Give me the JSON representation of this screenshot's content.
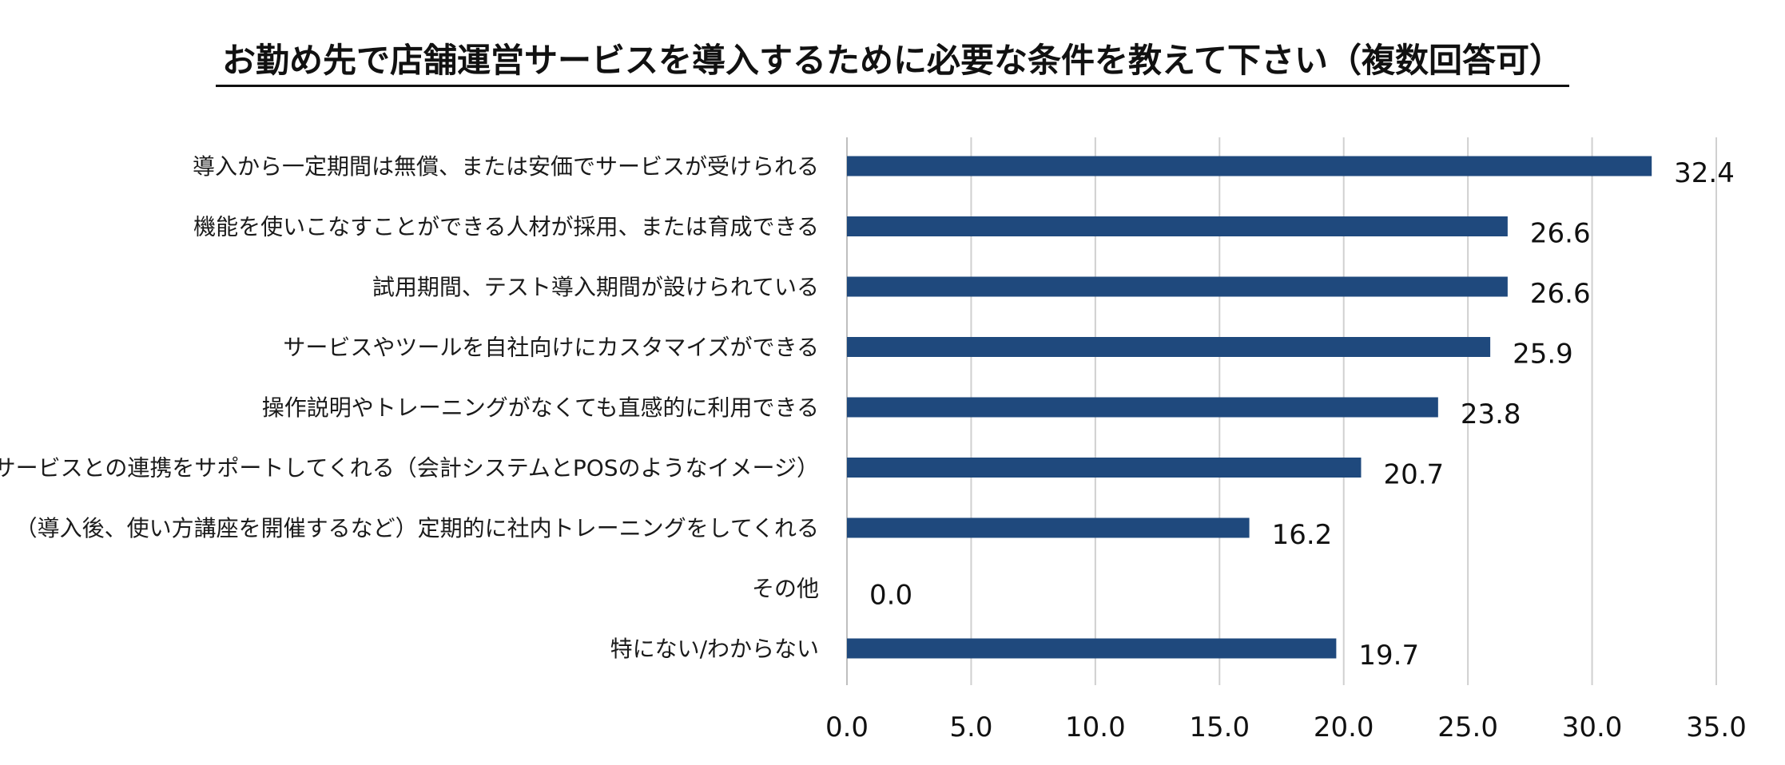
{
  "chart_data": {
    "type": "bar",
    "orientation": "horizontal",
    "title": "お勤め先で店舗運営サービスを導入するために必要な条件を教えて下さい（複数回答可）",
    "categories": [
      "導入から一定期間は無償、または安価でサービスが受けられる",
      "機能を使いこなすことができる人材が採用、または育成できる",
      "試用期間、テスト導入期間が設けられている",
      "サービスやツールを自社向けにカスタマイズができる",
      "操作説明やトレーニングがなくても直感的に利用できる",
      "他サービスとの連携をサポートしてくれる（会計システムとPOSのようなイメージ）",
      "（導入後、使い方講座を開催するなど）定期的に社内トレーニングをしてくれる",
      "その他",
      "特にない/わからない"
    ],
    "values": [
      32.4,
      26.6,
      26.6,
      25.9,
      23.8,
      20.7,
      16.2,
      0.0,
      19.7
    ],
    "value_labels": [
      "32.4",
      "26.6",
      "26.6",
      "25.9",
      "23.8",
      "20.7",
      "16.2",
      "0.0",
      "19.7"
    ],
    "xlim": [
      0,
      35
    ],
    "xticks": [
      "0.0",
      "5.0",
      "10.0",
      "15.0",
      "20.0",
      "25.0",
      "30.0",
      "35.0"
    ],
    "grid": true,
    "bar_color": "#1f497d",
    "grid_color": "#d0d0d0"
  }
}
